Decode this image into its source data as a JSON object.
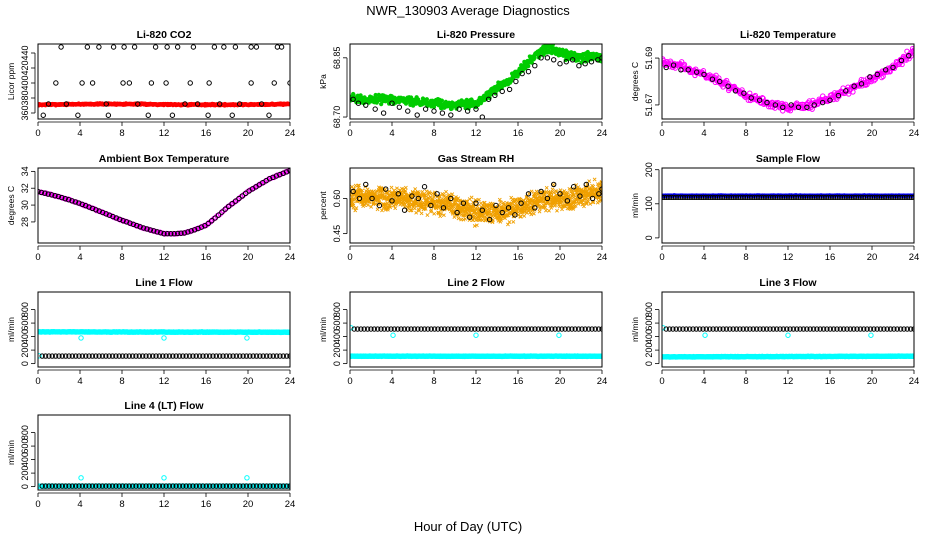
{
  "figure": {
    "title": "NWR_130903  Average Diagnostics",
    "xlabel": "Hour of Day (UTC)"
  },
  "chart_data": [
    {
      "type": "scatter",
      "title": "Li-820 CO2",
      "ylabel": "Licor ppm",
      "xlim": [
        0,
        24
      ],
      "ylim": [
        352,
        452
      ],
      "xticks": [
        0,
        4,
        8,
        12,
        16,
        20,
        24
      ],
      "yticks": [
        360,
        380,
        400,
        420,
        440
      ],
      "series": [
        {
          "kind": "dense",
          "color": "#ff0000",
          "marker": "dot",
          "x_range": [
            0,
            24
          ],
          "y_start": 371,
          "y_end": 372,
          "wave_amp": 0.7,
          "spread": 1.4,
          "count": 640
        },
        {
          "kind": "points",
          "color": "#000000",
          "marker": "circle",
          "x": [
            0.5,
            1.0,
            1.7,
            2.2,
            2.7,
            3.8,
            4.2,
            4.7,
            5.2,
            5.8,
            6.5,
            6.7,
            7.2,
            8.1,
            8.2,
            8.7,
            9.2,
            9.5,
            10.5,
            10.8,
            11.2,
            12.2,
            12.3,
            12.8,
            13.3,
            14.0,
            14.5,
            14.8,
            15.2,
            16.2,
            16.3,
            16.8,
            17.3,
            17.7,
            18.5,
            18.8,
            19.2,
            20.3,
            20.3,
            20.8,
            21.3,
            22.0,
            22.5,
            22.8,
            23.2,
            24.0,
            24.2
          ],
          "y": [
            357,
            372,
            400,
            448,
            372,
            357,
            400,
            448,
            400,
            448,
            372,
            357,
            448,
            400,
            448,
            400,
            448,
            372,
            357,
            400,
            448,
            400,
            448,
            357,
            448,
            372,
            400,
            448,
            372,
            357,
            400,
            448,
            372,
            448,
            357,
            448,
            372,
            400,
            448,
            448,
            372,
            357,
            400,
            448,
            448,
            400,
            357
          ]
        }
      ]
    },
    {
      "type": "scatter",
      "title": "Li-820 Pressure",
      "ylabel": "kPa",
      "xlim": [
        0,
        24
      ],
      "ylim": [
        68.695,
        68.885
      ],
      "xticks": [
        0,
        4,
        8,
        12,
        16,
        20,
        24
      ],
      "yticks": [
        68.7,
        68.85
      ],
      "series": [
        {
          "kind": "dense",
          "color": "#00cc00",
          "marker": "dot",
          "x_knots": [
            0,
            1,
            4,
            6,
            10,
            12,
            13,
            14,
            15,
            16,
            17,
            18,
            19,
            20,
            21,
            22,
            24
          ],
          "y_knots": [
            68.75,
            68.745,
            68.745,
            68.74,
            68.73,
            68.735,
            68.755,
            68.775,
            68.79,
            68.81,
            68.84,
            68.865,
            68.875,
            68.865,
            68.855,
            68.85,
            68.855
          ],
          "spread": 0.016,
          "count": 640
        },
        {
          "kind": "points",
          "color": "#000000",
          "marker": "circle",
          "x": [
            0.3,
            0.8,
            1.5,
            2.4,
            3.2,
            4.0,
            4.7,
            5.5,
            6.4,
            7.2,
            8.0,
            8.8,
            9.6,
            10.4,
            11.2,
            12.0,
            12.6,
            13.2,
            13.8,
            14.5,
            15.2,
            15.8,
            16.4,
            17.0,
            17.6,
            18.2,
            18.8,
            19.4,
            20.0,
            20.6,
            21.2,
            21.8,
            22.4,
            23.0,
            23.6,
            24.0
          ],
          "y": [
            68.745,
            68.735,
            68.73,
            68.72,
            68.71,
            68.735,
            68.725,
            68.715,
            68.705,
            68.72,
            68.715,
            68.71,
            68.705,
            68.72,
            68.715,
            68.72,
            68.7,
            68.745,
            68.755,
            68.765,
            68.77,
            68.79,
            68.81,
            68.815,
            68.83,
            68.85,
            68.85,
            68.845,
            68.835,
            68.84,
            68.845,
            68.83,
            68.835,
            68.84,
            68.845,
            68.85
          ]
        }
      ]
    },
    {
      "type": "scatter",
      "title": "Li-820 Temperature",
      "ylabel": "degrees C",
      "xlim": [
        0,
        24
      ],
      "ylim": [
        51.664,
        51.696
      ],
      "xticks": [
        0,
        4,
        8,
        12,
        16,
        20,
        24
      ],
      "yticks": [
        51.67,
        51.69
      ],
      "series": [
        {
          "kind": "dense",
          "color": "#ff00ff",
          "marker": "circle",
          "x_knots": [
            0,
            2,
            4,
            6,
            8,
            10,
            12,
            13,
            14,
            16,
            18,
            20,
            22,
            24
          ],
          "y_knots": [
            51.688,
            51.686,
            51.683,
            51.679,
            51.674,
            51.671,
            51.669,
            51.669,
            51.67,
            51.673,
            51.677,
            51.681,
            51.686,
            51.693
          ],
          "spread": 0.0025,
          "count": 360
        },
        {
          "kind": "points",
          "color": "#000000",
          "marker": "circle",
          "x": [
            0.4,
            1.1,
            1.8,
            2.5,
            3.3,
            4.0,
            4.8,
            5.5,
            6.3,
            7.0,
            7.8,
            8.5,
            9.3,
            10.0,
            10.8,
            11.5,
            12.3,
            13.0,
            13.8,
            14.5,
            15.3,
            16.0,
            16.8,
            17.5,
            18.3,
            19.0,
            19.8,
            20.5,
            21.3,
            22.0,
            22.8,
            23.5
          ],
          "y": [
            51.686,
            51.687,
            51.685,
            51.685,
            51.684,
            51.683,
            51.681,
            51.68,
            51.678,
            51.676,
            51.675,
            51.673,
            51.672,
            51.671,
            51.67,
            51.669,
            51.67,
            51.669,
            51.669,
            51.67,
            51.671,
            51.672,
            51.674,
            51.676,
            51.678,
            51.679,
            51.682,
            51.683,
            51.685,
            51.686,
            51.689,
            51.691
          ]
        }
      ]
    },
    {
      "type": "scatter",
      "title": "Ambient Box Temperature",
      "ylabel": "degrees C",
      "xlim": [
        0,
        24
      ],
      "ylim": [
        25.5,
        34.4
      ],
      "xticks": [
        0,
        4,
        8,
        12,
        16,
        20,
        24
      ],
      "yticks": [
        28,
        30,
        32,
        34
      ],
      "series": [
        {
          "kind": "dense",
          "color": "#ff00ff",
          "marker": "circle",
          "x_knots": [
            0,
            2,
            4,
            6,
            8,
            10,
            12,
            13,
            14,
            15,
            16,
            17,
            18,
            20,
            22,
            24
          ],
          "y_knots": [
            31.6,
            31.0,
            30.2,
            29.2,
            28.2,
            27.3,
            26.6,
            26.6,
            26.7,
            27.1,
            27.6,
            28.6,
            29.7,
            31.6,
            33.1,
            34.1
          ],
          "spread": 0.08,
          "count": 160
        },
        {
          "kind": "curve",
          "color": "#000000",
          "marker": "circle",
          "x_knots": [
            0,
            2,
            4,
            6,
            8,
            10,
            12,
            13,
            14,
            15,
            16,
            17,
            18,
            20,
            22,
            24
          ],
          "y_knots": [
            31.6,
            31.0,
            30.2,
            29.2,
            28.2,
            27.3,
            26.6,
            26.6,
            26.7,
            27.1,
            27.6,
            28.6,
            29.7,
            31.6,
            33.1,
            34.1
          ],
          "count": 75
        }
      ]
    },
    {
      "type": "scatter",
      "title": "Gas Stream RH",
      "ylabel": "percent",
      "xlim": [
        0,
        24
      ],
      "ylim": [
        0.41,
        0.73
      ],
      "xticks": [
        0,
        4,
        8,
        12,
        16,
        20,
        24
      ],
      "yticks": [
        0.45,
        0.6
      ],
      "series": [
        {
          "kind": "dense",
          "color": "#f0a000",
          "marker": "cross",
          "x_knots": [
            0,
            4,
            8,
            10,
            12,
            14,
            16,
            18,
            20,
            22,
            24
          ],
          "y_knots": [
            0.61,
            0.6,
            0.58,
            0.57,
            0.54,
            0.54,
            0.56,
            0.59,
            0.6,
            0.61,
            0.63
          ],
          "spread": 0.07,
          "count": 1300
        },
        {
          "kind": "points",
          "color": "#000000",
          "marker": "circle",
          "x": [
            0.3,
            0.9,
            1.5,
            2.1,
            2.8,
            3.4,
            4.0,
            4.6,
            5.2,
            5.9,
            6.5,
            7.1,
            7.7,
            8.3,
            8.9,
            9.6,
            10.2,
            10.8,
            11.4,
            12.0,
            12.6,
            13.3,
            13.9,
            14.5,
            15.1,
            15.7,
            16.3,
            17.0,
            17.6,
            18.2,
            18.8,
            19.4,
            20.0,
            20.7,
            21.3,
            21.9,
            22.5,
            23.1,
            23.7,
            24.0
          ],
          "y": [
            0.63,
            0.6,
            0.66,
            0.6,
            0.57,
            0.64,
            0.59,
            0.62,
            0.55,
            0.61,
            0.6,
            0.65,
            0.57,
            0.62,
            0.56,
            0.6,
            0.54,
            0.58,
            0.52,
            0.58,
            0.55,
            0.51,
            0.57,
            0.54,
            0.56,
            0.53,
            0.58,
            0.62,
            0.56,
            0.63,
            0.6,
            0.66,
            0.62,
            0.59,
            0.65,
            0.61,
            0.66,
            0.6,
            0.62,
            0.64
          ]
        }
      ]
    },
    {
      "type": "scatter",
      "title": "Sample Flow",
      "ylabel": "ml/min",
      "xlim": [
        0,
        24
      ],
      "ylim": [
        -15,
        205
      ],
      "xticks": [
        0,
        4,
        8,
        12,
        16,
        20,
        24
      ],
      "yticks": [
        0,
        100,
        200
      ],
      "series": [
        {
          "kind": "dense",
          "color": "#0000ff",
          "marker": "dot",
          "x_range": [
            0,
            24
          ],
          "y_start": 124,
          "y_end": 124,
          "spread": 1.2,
          "count": 420
        },
        {
          "kind": "curve",
          "color": "#000000",
          "marker": "circle",
          "x_knots": [
            0,
            24
          ],
          "y_knots": [
            119,
            119
          ],
          "count": 110
        }
      ]
    },
    {
      "type": "scatter",
      "title": "Line 1 Flow",
      "ylabel": "ml/min",
      "xlim": [
        0,
        24
      ],
      "ylim": [
        -50,
        1060
      ],
      "xticks": [
        0,
        4,
        8,
        12,
        16,
        20,
        24
      ],
      "yticks": [
        0,
        200,
        400,
        600,
        800
      ],
      "series": [
        {
          "kind": "dense",
          "color": "#00ffff",
          "marker": "circle",
          "x_range": [
            0,
            24
          ],
          "y_start": 470,
          "y_end": 465,
          "spread": 5,
          "count": 280
        },
        {
          "kind": "points",
          "color": "#00ffff",
          "marker": "circle",
          "x": [
            0.1,
            4.1,
            12.0,
            19.9
          ],
          "y": [
            115,
            380,
            380,
            380
          ]
        },
        {
          "kind": "curve",
          "color": "#000000",
          "marker": "circle",
          "x_knots": [
            0.4,
            24
          ],
          "y_knots": [
            112,
            112
          ],
          "count": 75
        }
      ]
    },
    {
      "type": "scatter",
      "title": "Line 2 Flow",
      "ylabel": "ml/min",
      "xlim": [
        0,
        24
      ],
      "ylim": [
        -50,
        1060
      ],
      "xticks": [
        0,
        4,
        8,
        12,
        16,
        20,
        24
      ],
      "yticks": [
        0,
        200,
        400,
        600,
        800
      ],
      "series": [
        {
          "kind": "dense",
          "color": "#00ffff",
          "marker": "circle",
          "x_range": [
            0,
            24
          ],
          "y_start": 110,
          "y_end": 110,
          "spread": 5,
          "count": 280
        },
        {
          "kind": "points",
          "color": "#00ffff",
          "marker": "circle",
          "x": [
            0.1,
            4.1,
            12.0,
            19.9
          ],
          "y": [
            530,
            420,
            420,
            420
          ]
        },
        {
          "kind": "curve",
          "color": "#000000",
          "marker": "circle",
          "x_knots": [
            0.4,
            24
          ],
          "y_knots": [
            512,
            512
          ],
          "count": 75
        }
      ]
    },
    {
      "type": "scatter",
      "title": "Line 3 Flow",
      "ylabel": "ml/min",
      "xlim": [
        0,
        24
      ],
      "ylim": [
        -50,
        1060
      ],
      "xticks": [
        0,
        4,
        8,
        12,
        16,
        20,
        24
      ],
      "yticks": [
        0,
        200,
        400,
        600,
        800
      ],
      "series": [
        {
          "kind": "dense",
          "color": "#00ffff",
          "marker": "circle",
          "x_range": [
            0,
            24
          ],
          "y_start": 100,
          "y_end": 110,
          "spread": 5,
          "count": 280
        },
        {
          "kind": "points",
          "color": "#00ffff",
          "marker": "circle",
          "x": [
            0.1,
            4.1,
            12.0,
            19.9
          ],
          "y": [
            530,
            420,
            420,
            420
          ]
        },
        {
          "kind": "curve",
          "color": "#000000",
          "marker": "circle",
          "x_knots": [
            0.4,
            24
          ],
          "y_knots": [
            512,
            512
          ],
          "count": 75
        }
      ]
    },
    {
      "type": "scatter",
      "title": "Line 4 (LT) Flow",
      "ylabel": "ml/min",
      "xlim": [
        0,
        24
      ],
      "ylim": [
        -50,
        1060
      ],
      "xticks": [
        0,
        4,
        8,
        12,
        16,
        20,
        24
      ],
      "yticks": [
        0,
        200,
        400,
        600,
        800
      ],
      "series": [
        {
          "kind": "dense",
          "color": "#00ffff",
          "marker": "circle",
          "x_range": [
            0,
            24
          ],
          "y_start": 8,
          "y_end": 8,
          "spread": 3,
          "count": 200
        },
        {
          "kind": "points",
          "color": "#00ffff",
          "marker": "circle",
          "x": [
            4.1,
            12.0,
            19.9
          ],
          "y": [
            130,
            130,
            130
          ]
        },
        {
          "kind": "curve",
          "color": "#000000",
          "marker": "circle",
          "x_knots": [
            0.4,
            24
          ],
          "y_knots": [
            8,
            8
          ],
          "count": 75
        }
      ]
    }
  ]
}
